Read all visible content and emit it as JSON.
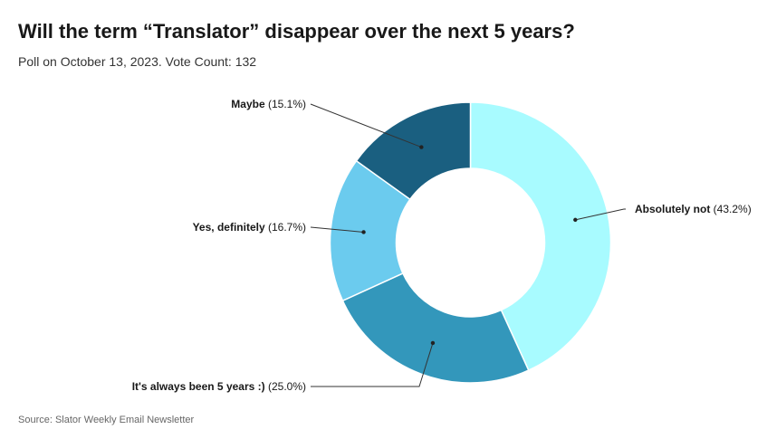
{
  "header": {
    "title": "Will the term “Translator” disappear over the next 5 years?",
    "subtitle": "Poll on October 13, 2023. Vote Count: 132"
  },
  "footer": {
    "source": "Source: Slator Weekly Email Newsletter"
  },
  "colors": {
    "absolutely_not": "#a8fbff",
    "always_5_years": "#3397bb",
    "yes_definitely": "#6bcbee",
    "maybe": "#1a5f80"
  },
  "chart_data": {
    "type": "pie",
    "donut": true,
    "title": "Will the term “Translator” disappear over the next 5 years?",
    "subtitle": "Poll on October 13, 2023. Vote Count: 132",
    "slices": [
      {
        "label": "Absolutely not",
        "value": 43.2,
        "display": "(43.2%)",
        "color": "#a8fbff"
      },
      {
        "label": "It's always been 5 years :)",
        "value": 25.0,
        "display": "(25.0%)",
        "color": "#3397bb"
      },
      {
        "label": "Yes, definitely",
        "value": 16.7,
        "display": "(16.7%)",
        "color": "#6bcbee"
      },
      {
        "label": "Maybe",
        "value": 15.1,
        "display": "(15.1%)",
        "color": "#1a5f80"
      }
    ]
  }
}
